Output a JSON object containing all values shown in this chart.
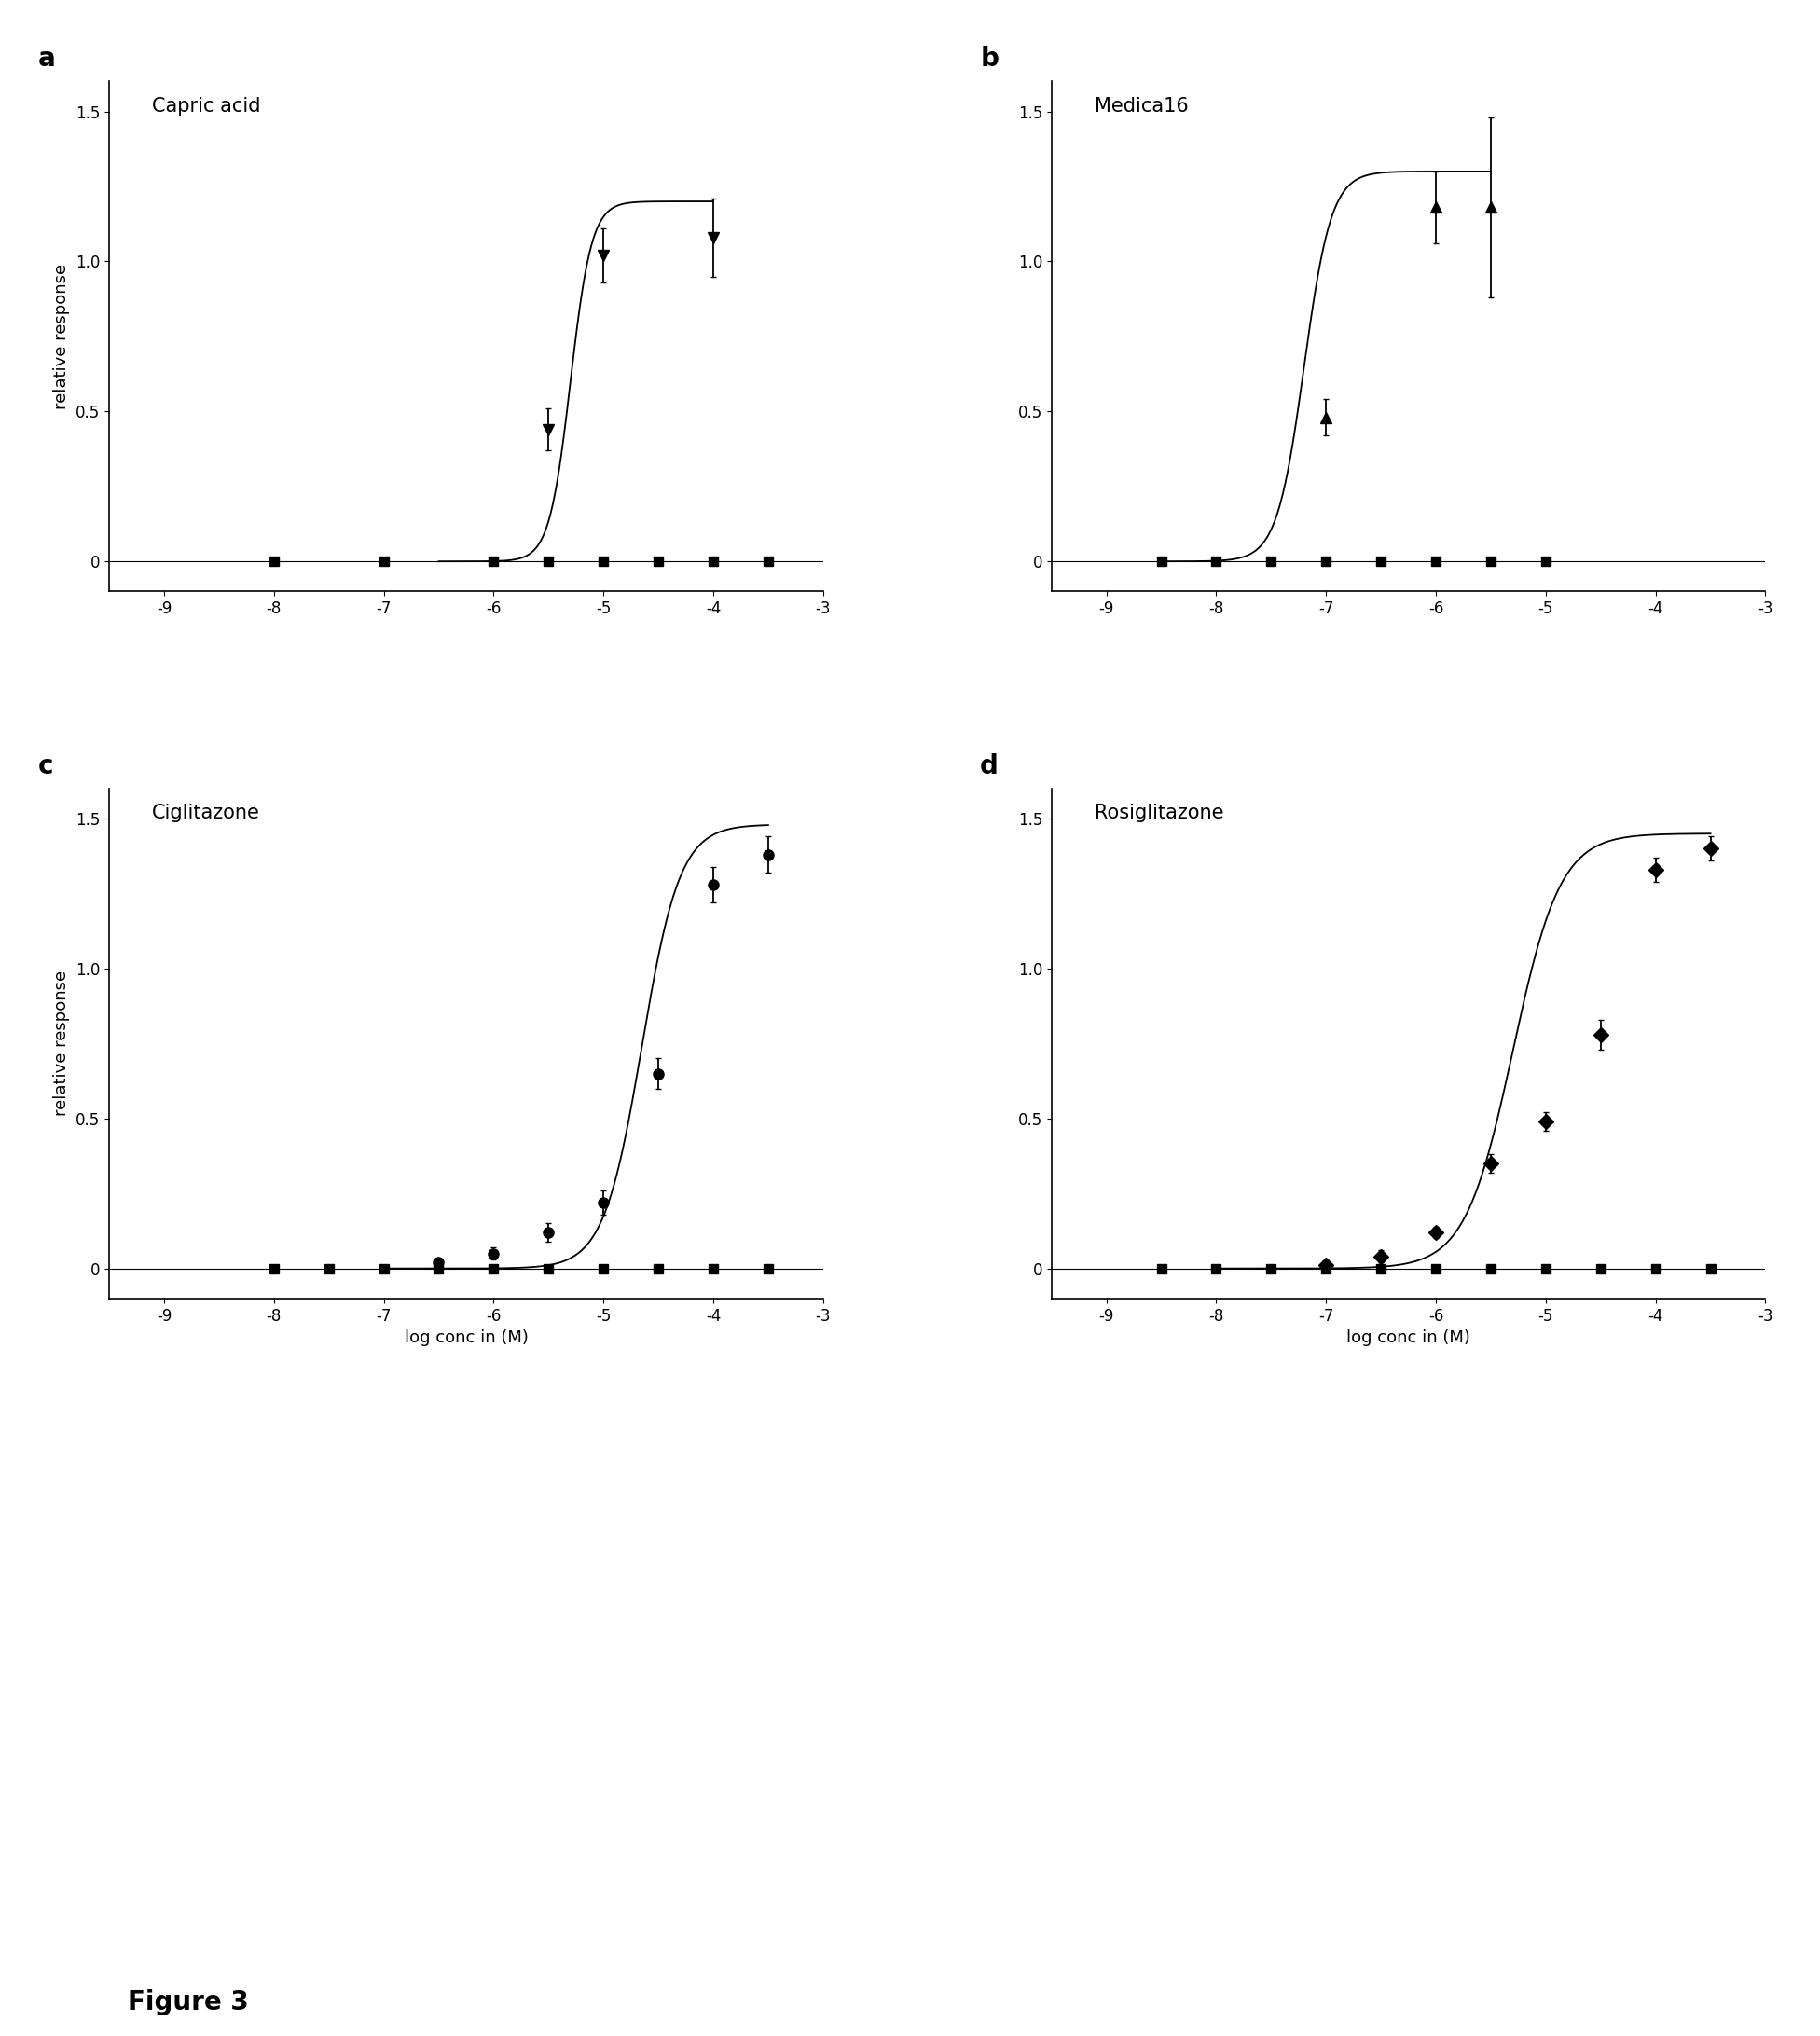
{
  "panels": [
    {
      "label": "a",
      "title": "Capric acid",
      "curve_marker": "v",
      "control_marker": "s",
      "curve_points": {
        "x": [
          -5.5,
          -5.0,
          -4.0
        ],
        "y": [
          0.44,
          1.02,
          1.08
        ],
        "yerr": [
          0.07,
          0.09,
          0.13
        ]
      },
      "control_points": {
        "x": [
          -8.0,
          -7.0,
          -6.0,
          -5.5,
          -5.0,
          -4.5,
          -4.0,
          -3.5
        ],
        "y": [
          0.0,
          0.0,
          0.0,
          0.0,
          0.0,
          0.0,
          0.0,
          0.0
        ],
        "yerr": [
          0.01,
          0.01,
          0.01,
          0.01,
          0.01,
          0.01,
          0.01,
          0.01
        ]
      },
      "ec50_log": -5.3,
      "hill": 4.5,
      "emax": 1.2,
      "fit_xmin": -6.5,
      "fit_xmax": -4.0,
      "xlim": [
        -9.5,
        -3.0
      ],
      "ylim": [
        -0.1,
        1.6
      ],
      "xlabel": "",
      "ylabel": "relative response",
      "xticks": [
        -9,
        -8,
        -7,
        -6,
        -5,
        -4,
        -3
      ]
    },
    {
      "label": "b",
      "title": "Medica16",
      "curve_marker": "^",
      "control_marker": "s",
      "curve_points": {
        "x": [
          -7.0,
          -6.0,
          -5.5
        ],
        "y": [
          0.48,
          1.18,
          1.18
        ],
        "yerr": [
          0.06,
          0.12,
          0.3
        ]
      },
      "control_points": {
        "x": [
          -8.5,
          -8.0,
          -7.5,
          -7.0,
          -6.5,
          -6.0,
          -5.5,
          -5.0
        ],
        "y": [
          0.0,
          0.0,
          0.0,
          0.0,
          0.0,
          0.0,
          0.0,
          0.0
        ],
        "yerr": [
          0.01,
          0.01,
          0.01,
          0.01,
          0.01,
          0.01,
          0.01,
          0.01
        ]
      },
      "ec50_log": -7.2,
      "hill": 3.5,
      "emax": 1.3,
      "fit_xmin": -8.5,
      "fit_xmax": -5.5,
      "xlim": [
        -9.5,
        -3.0
      ],
      "ylim": [
        -0.1,
        1.6
      ],
      "xlabel": "",
      "ylabel": "",
      "xticks": [
        -9,
        -8,
        -7,
        -6,
        -5,
        -4,
        -3
      ]
    },
    {
      "label": "c",
      "title": "Ciglitazone",
      "curve_marker": "o",
      "control_marker": "s",
      "curve_points": {
        "x": [
          -6.5,
          -6.0,
          -5.5,
          -5.0,
          -4.5,
          -4.0,
          -3.5
        ],
        "y": [
          0.02,
          0.05,
          0.12,
          0.22,
          0.65,
          1.28,
          1.38
        ],
        "yerr": [
          0.01,
          0.02,
          0.03,
          0.04,
          0.05,
          0.06,
          0.06
        ]
      },
      "control_points": {
        "x": [
          -8.0,
          -7.5,
          -7.0,
          -6.5,
          -6.0,
          -5.5,
          -5.0,
          -4.5,
          -4.0,
          -3.5
        ],
        "y": [
          0.0,
          0.0,
          0.0,
          0.0,
          0.0,
          0.0,
          0.0,
          0.0,
          0.0,
          0.0
        ],
        "yerr": [
          0.01,
          0.01,
          0.01,
          0.01,
          0.01,
          0.01,
          0.01,
          0.01,
          0.01,
          0.01
        ]
      },
      "ec50_log": -4.65,
      "hill": 2.5,
      "emax": 1.48,
      "fit_xmin": -7.0,
      "fit_xmax": -3.5,
      "xlim": [
        -9.5,
        -3.0
      ],
      "ylim": [
        -0.1,
        1.6
      ],
      "xlabel": "log conc in (M)",
      "ylabel": "relative response",
      "xticks": [
        -9,
        -8,
        -7,
        -6,
        -5,
        -4,
        -3
      ]
    },
    {
      "label": "d",
      "title": "Rosiglitazone",
      "curve_marker": "D",
      "control_marker": "s",
      "curve_points": {
        "x": [
          -7.0,
          -6.5,
          -6.0,
          -5.5,
          -5.0,
          -4.5,
          -4.0,
          -3.5
        ],
        "y": [
          0.01,
          0.04,
          0.12,
          0.35,
          0.49,
          0.78,
          1.33,
          1.4
        ],
        "yerr": [
          0.01,
          0.02,
          0.02,
          0.03,
          0.03,
          0.05,
          0.04,
          0.04
        ]
      },
      "control_points": {
        "x": [
          -8.5,
          -8.0,
          -7.5,
          -7.0,
          -6.5,
          -6.0,
          -5.5,
          -5.0,
          -4.5,
          -4.0,
          -3.5
        ],
        "y": [
          0.0,
          0.0,
          0.0,
          0.0,
          0.0,
          0.0,
          0.0,
          0.0,
          0.0,
          0.0,
          0.0
        ],
        "yerr": [
          0.01,
          0.01,
          0.01,
          0.01,
          0.01,
          0.01,
          0.01,
          0.01,
          0.01,
          0.01,
          0.01
        ]
      },
      "ec50_log": -5.3,
      "hill": 2.0,
      "emax": 1.45,
      "fit_xmin": -8.0,
      "fit_xmax": -3.5,
      "xlim": [
        -9.5,
        -3.0
      ],
      "ylim": [
        -0.1,
        1.6
      ],
      "xlabel": "log conc in (M)",
      "ylabel": "",
      "xticks": [
        -9,
        -8,
        -7,
        -6,
        -5,
        -4,
        -3
      ]
    }
  ],
  "figure_label": "Figure 3",
  "background_color": "#ffffff",
  "marker_size": 7,
  "line_width": 1.3,
  "font_size": 13,
  "label_font_size": 20,
  "title_font_size": 15,
  "tick_font_size": 12
}
